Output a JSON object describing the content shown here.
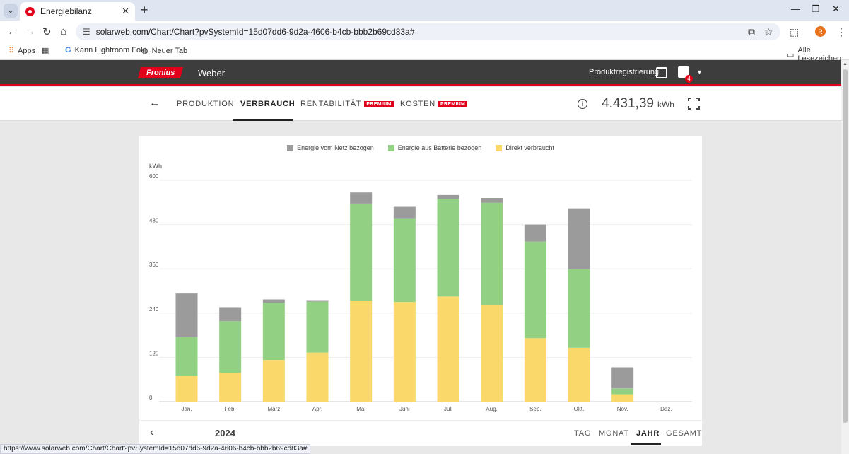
{
  "browser": {
    "tab_title": "Energiebilanz",
    "url": "solarweb.com/Chart/Chart?pvSystemId=15d07dd6-9d2a-4606-b4cb-bbb2b69cd83a#",
    "profile_initial": "R",
    "bookmarks": [
      "Apps",
      "Kann Lightroom Fok...",
      "Neuer Tab"
    ],
    "bookmarks_right": "Alle Lesezeichen",
    "status_url": "https://www.solarweb.com/Chart/Chart?pvSystemId=15d07dd6-9d2a-4606-b4cb-bbb2b69cd83a#"
  },
  "header": {
    "logo": "Fronius",
    "system_name": "Weber",
    "product_registration": "Produktregistrierung",
    "notification_count": "4"
  },
  "subnav": {
    "tabs": [
      {
        "label": "PRODUKTION"
      },
      {
        "label": "VERBRAUCH"
      },
      {
        "label": "RENTABILITÄT",
        "badge": "PREMIUM"
      },
      {
        "label": "KOSTEN",
        "badge": "PREMIUM"
      }
    ],
    "total_value": "4.431,39",
    "total_unit": "kWh"
  },
  "bottom": {
    "year": "2024",
    "periods": [
      "TAG",
      "MONAT",
      "JAHR",
      "GESAMT"
    ],
    "active_period": "JAHR"
  },
  "colors": {
    "grid": "#9b9b9b",
    "battery": "#92d084",
    "direct": "#fad96a",
    "brand": "#e2001a"
  },
  "chart_data": {
    "type": "bar",
    "stacked": true,
    "ylabel": "kWh",
    "ylim": [
      0,
      600
    ],
    "yticks": [
      0,
      120,
      240,
      360,
      480,
      600
    ],
    "categories": [
      "Jan.",
      "Feb.",
      "März",
      "Apr.",
      "Mai",
      "Juni",
      "Juli",
      "Aug.",
      "Sep.",
      "Okt.",
      "Nov.",
      "Dez."
    ],
    "series": [
      {
        "name": "Direkt verbraucht",
        "color": "#fad96a",
        "values": [
          70,
          78,
          113,
          133,
          274,
          270,
          285,
          261,
          172,
          146,
          20,
          0
        ]
      },
      {
        "name": "Energie aus Batterie bezogen",
        "color": "#92d084",
        "values": [
          105,
          140,
          155,
          138,
          263,
          227,
          265,
          278,
          262,
          213,
          16,
          0
        ]
      },
      {
        "name": "Energie vom Netz bezogen",
        "color": "#9b9b9b",
        "values": [
          118,
          38,
          9,
          4,
          30,
          31,
          10,
          13,
          46,
          165,
          57,
          0
        ]
      }
    ],
    "legend_order": [
      "Energie vom Netz bezogen",
      "Energie aus Batterie bezogen",
      "Direkt verbraucht"
    ],
    "legend_position": "top-center",
    "grid": true
  }
}
